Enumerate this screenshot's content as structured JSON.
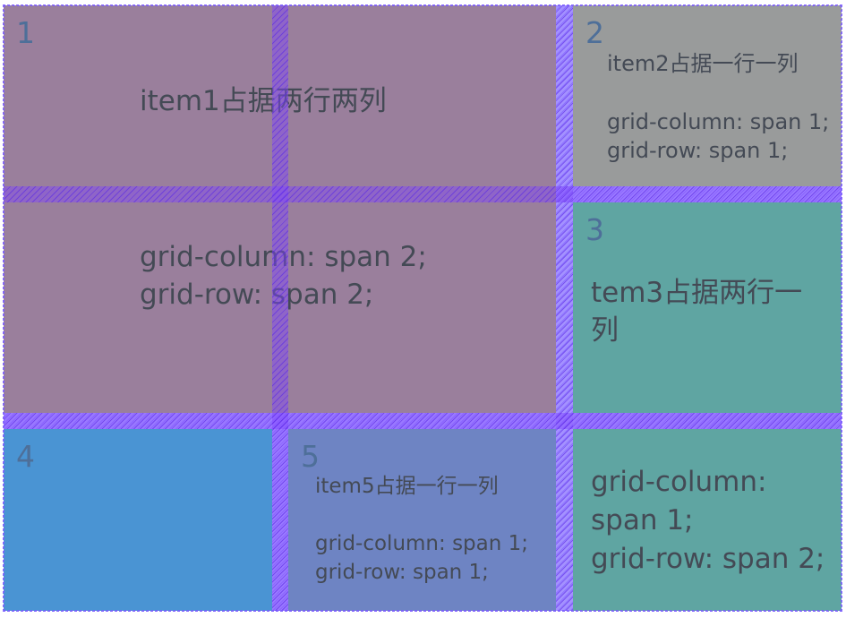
{
  "items": [
    {
      "number": "1",
      "title": "item1占据两行两列",
      "code": "grid-column: span 2;\ngrid-row: span 2;",
      "color": "#9a7f9c"
    },
    {
      "number": "2",
      "title": "item2占据一行一列",
      "code": "grid-column: span 1;\ngrid-row: span 1;",
      "color": "#999b9b"
    },
    {
      "number": "3",
      "title": "tem3占据两行一列",
      "color": "#5fa5a2"
    },
    {
      "number": "4",
      "color": "#4a94d3"
    },
    {
      "number": "5",
      "title": "item5占据一行一列",
      "code": "grid-column: span 1;\ngrid-row: span 1;",
      "color": "#6e84c3"
    },
    {
      "code": "grid-column: span 1;\ngrid-row: span 2;",
      "color": "#5fa5a2"
    }
  ],
  "gap_color": "#a89cff"
}
